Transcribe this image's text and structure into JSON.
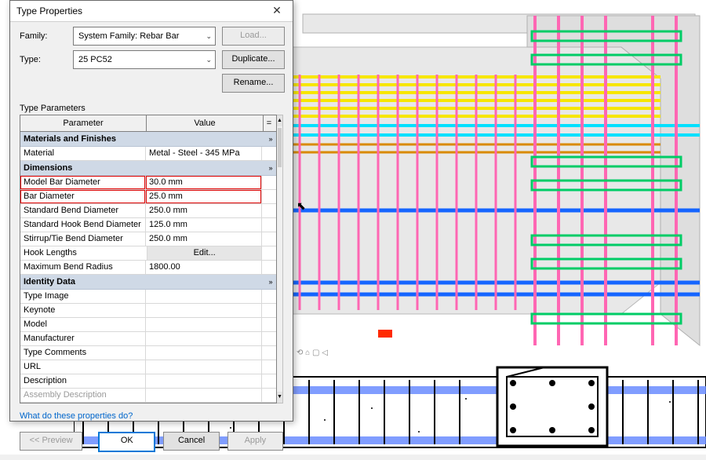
{
  "dialog": {
    "title": "Type Properties",
    "family_label": "Family:",
    "type_label": "Type:",
    "family_value": "System Family: Rebar Bar",
    "type_value": "25 PC52",
    "load_btn": "Load...",
    "duplicate_btn": "Duplicate...",
    "rename_btn": "Rename...",
    "section_label": "Type Parameters",
    "col_param": "Parameter",
    "col_value": "Value",
    "col_eq": "=",
    "link_text": "What do these properties do?",
    "preview_btn": "<< Preview",
    "ok_btn": "OK",
    "cancel_btn": "Cancel",
    "apply_btn": "Apply"
  },
  "groups": [
    {
      "name": "Materials and Finishes",
      "rows": [
        {
          "param": "Material",
          "value": "Metal - Steel - 345 MPa"
        }
      ]
    },
    {
      "name": "Dimensions",
      "rows": [
        {
          "param": "Model Bar Diameter",
          "value": "30.0 mm",
          "highlight": true
        },
        {
          "param": "Bar Diameter",
          "value": "25.0 mm",
          "highlight": true
        },
        {
          "param": "Standard Bend Diameter",
          "value": "250.0 mm"
        },
        {
          "param": "Standard Hook Bend Diameter",
          "value": "125.0 mm"
        },
        {
          "param": "Stirrup/Tie Bend Diameter",
          "value": "250.0 mm"
        },
        {
          "param": "Hook Lengths",
          "value": "Edit...",
          "edit": true
        },
        {
          "param": "Maximum Bend Radius",
          "value": "1800.00"
        }
      ]
    },
    {
      "name": "Identity Data",
      "rows": [
        {
          "param": "Type Image",
          "value": ""
        },
        {
          "param": "Keynote",
          "value": ""
        },
        {
          "param": "Model",
          "value": ""
        },
        {
          "param": "Manufacturer",
          "value": ""
        },
        {
          "param": "Type Comments",
          "value": ""
        },
        {
          "param": "URL",
          "value": ""
        },
        {
          "param": "Description",
          "value": ""
        },
        {
          "param": "Assembly Description",
          "value": "",
          "disabled": true
        }
      ]
    }
  ],
  "viewport3d": {
    "background": "#ffffff",
    "concrete_fill": "#e8e8e8",
    "concrete_stroke": "#b0b0b0",
    "rebar_colors": {
      "longitudinal_top": "#f7e600",
      "stirrup_vertical": "#ff66b3",
      "tie_horizontal": "#00cc66",
      "cyan_bars": "#00e0ff",
      "blue_bars": "#1565ff",
      "orange_bars": "#d98a00",
      "red_marker": "#ff2a00"
    }
  },
  "plan_view": {
    "background": "#ffffff",
    "concrete_hatch": "#000000",
    "beam_fill": "#6a8cff",
    "rebar_dot": "#000000"
  },
  "icons": {
    "close": "✕",
    "chevron_down": "⌄",
    "collapse": "»",
    "scroll_up": "▲",
    "scroll_down": "▼",
    "cursor": "↖"
  }
}
